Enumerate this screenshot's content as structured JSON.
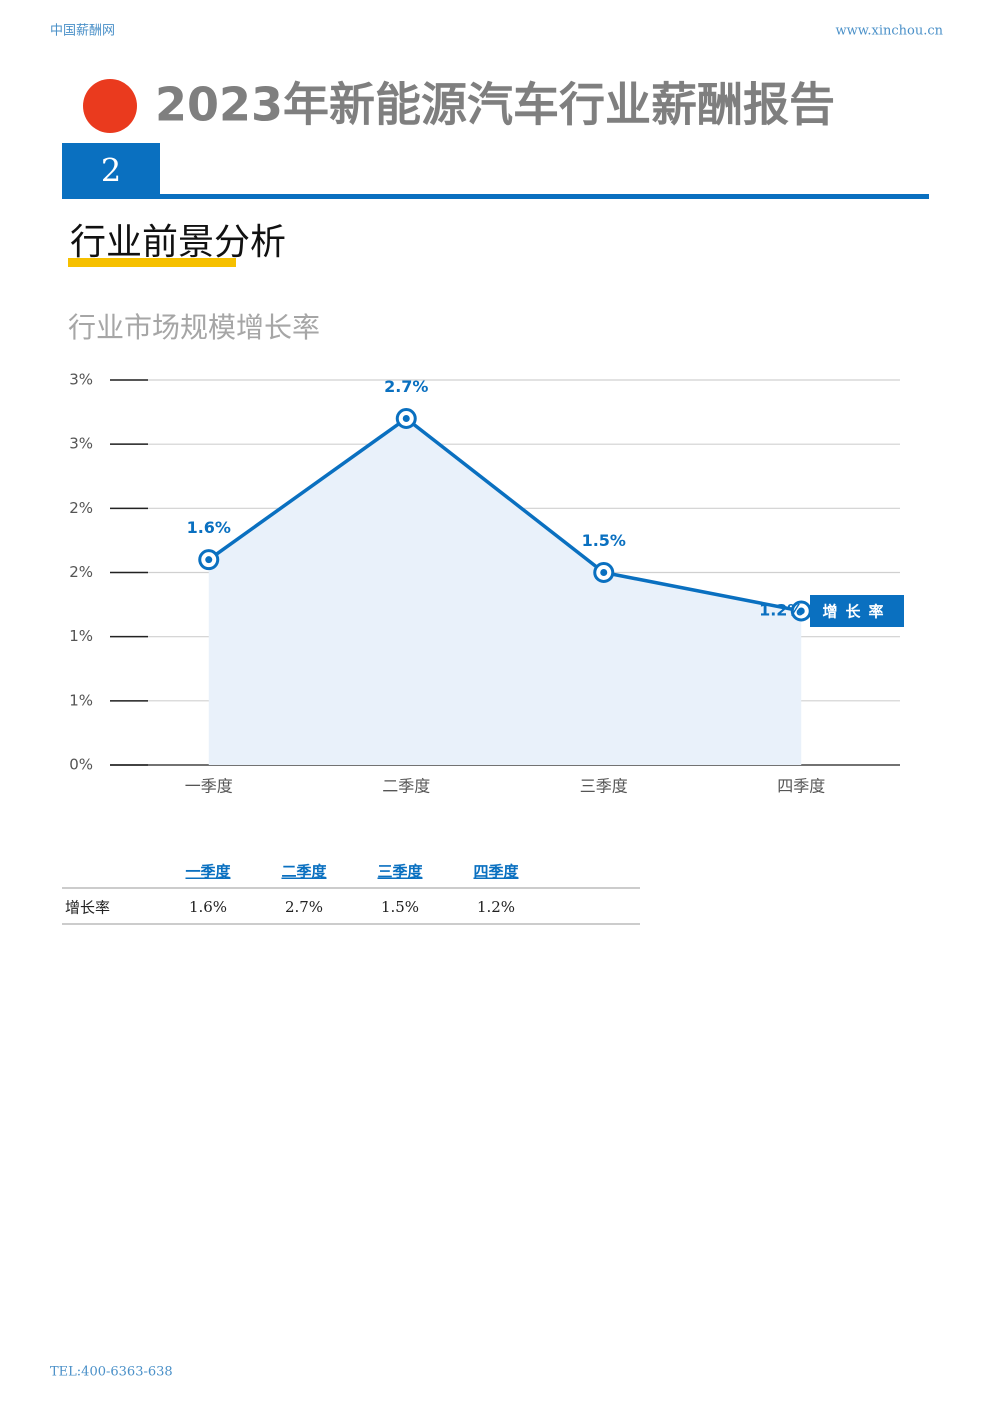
{
  "header": {
    "left": "中国薪酬网",
    "right": "www.xinchou.cn"
  },
  "title": "2023年新能源汽车行业薪酬报告",
  "section": {
    "number": "2",
    "heading": "行业前景分析"
  },
  "chart_data": {
    "type": "line",
    "title": "行业市场规模增长率",
    "categories": [
      "一季度",
      "二季度",
      "三季度",
      "四季度"
    ],
    "series": [
      {
        "name": "增长率",
        "color": "#0a70c0",
        "values": [
          1.6,
          2.7,
          1.5,
          1.2
        ],
        "value_labels": [
          "1.6%",
          "2.7%",
          "1.5%",
          "1.2%"
        ]
      }
    ],
    "ylim": [
      0,
      3
    ],
    "yticks": [
      {
        "value": 0,
        "label": "0%"
      },
      {
        "value": 0.5,
        "label": "1%"
      },
      {
        "value": 1,
        "label": "1%"
      },
      {
        "value": 1.5,
        "label": "2%"
      },
      {
        "value": 2,
        "label": "2%"
      },
      {
        "value": 2.5,
        "label": "3%"
      },
      {
        "value": 3,
        "label": "3%"
      }
    ],
    "grid": true,
    "area": true
  },
  "table": {
    "columns": [
      "一季度",
      "二季度",
      "三季度",
      "四季度"
    ],
    "rows": [
      [
        "增长率",
        "1.6%",
        "2.7%",
        "1.5%",
        "1.2%"
      ]
    ]
  },
  "footer": {
    "tel": "TEL:400-6363-638"
  }
}
